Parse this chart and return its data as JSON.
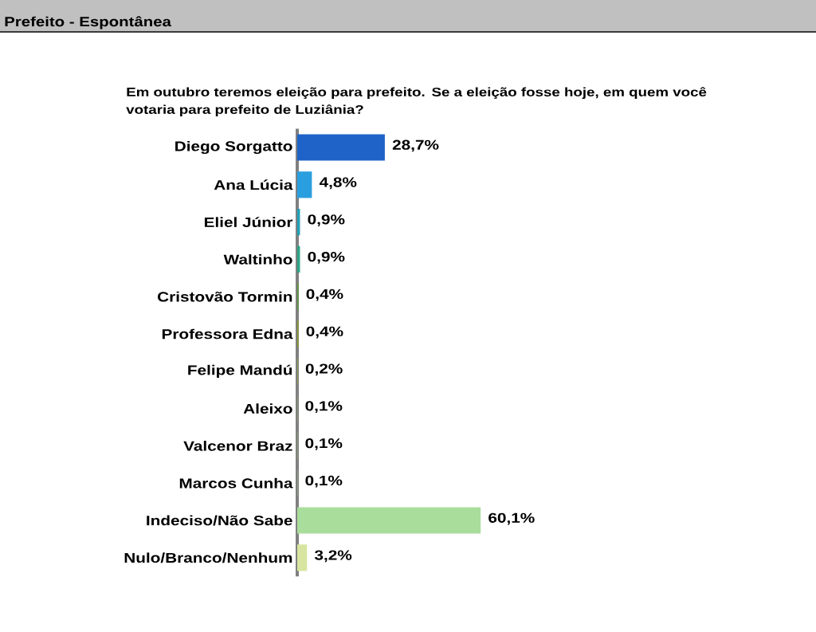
{
  "chart_data": {
    "type": "bar",
    "orientation": "horizontal",
    "title": "Prefeito - Espontânea",
    "subtitle": "Em outubro teremos eleição para prefeito. Se a eleição fosse hoje, em quem você votaria para prefeito de Luziânia?",
    "categories": [
      "Diego Sorgatto",
      "Ana Lúcia",
      "Eliel Júnior",
      "Waltinho",
      "Cristovão Tormin",
      "Professora Edna",
      "Felipe Mandú",
      "Aleixo",
      "Valcenor Braz",
      "Marcos Cunha",
      "Indeciso/Não Sabe",
      "Nulo/Branco/Nenhum"
    ],
    "values": [
      28.7,
      4.8,
      0.9,
      0.9,
      0.4,
      0.4,
      0.2,
      0.1,
      0.1,
      0.1,
      60.1,
      3.2
    ],
    "colors": [
      "#1f63c9",
      "#2a9fdf",
      "#22a0b4",
      "#2aa585",
      "#5e9a3c",
      "#8c9a2e",
      "#8fa84a",
      "#96b860",
      "#9cc674",
      "#a2d088",
      "#a9dd9c",
      "#d6e6a0"
    ],
    "value_labels": [
      "28,7%",
      "4,8%",
      "0,9%",
      "0,9%",
      "0,4%",
      "0,4%",
      "0,2%",
      "0,1%",
      "0,1%",
      "0,1%",
      "60,1%",
      "3,2%"
    ],
    "tick_labels": "y"
  }
}
